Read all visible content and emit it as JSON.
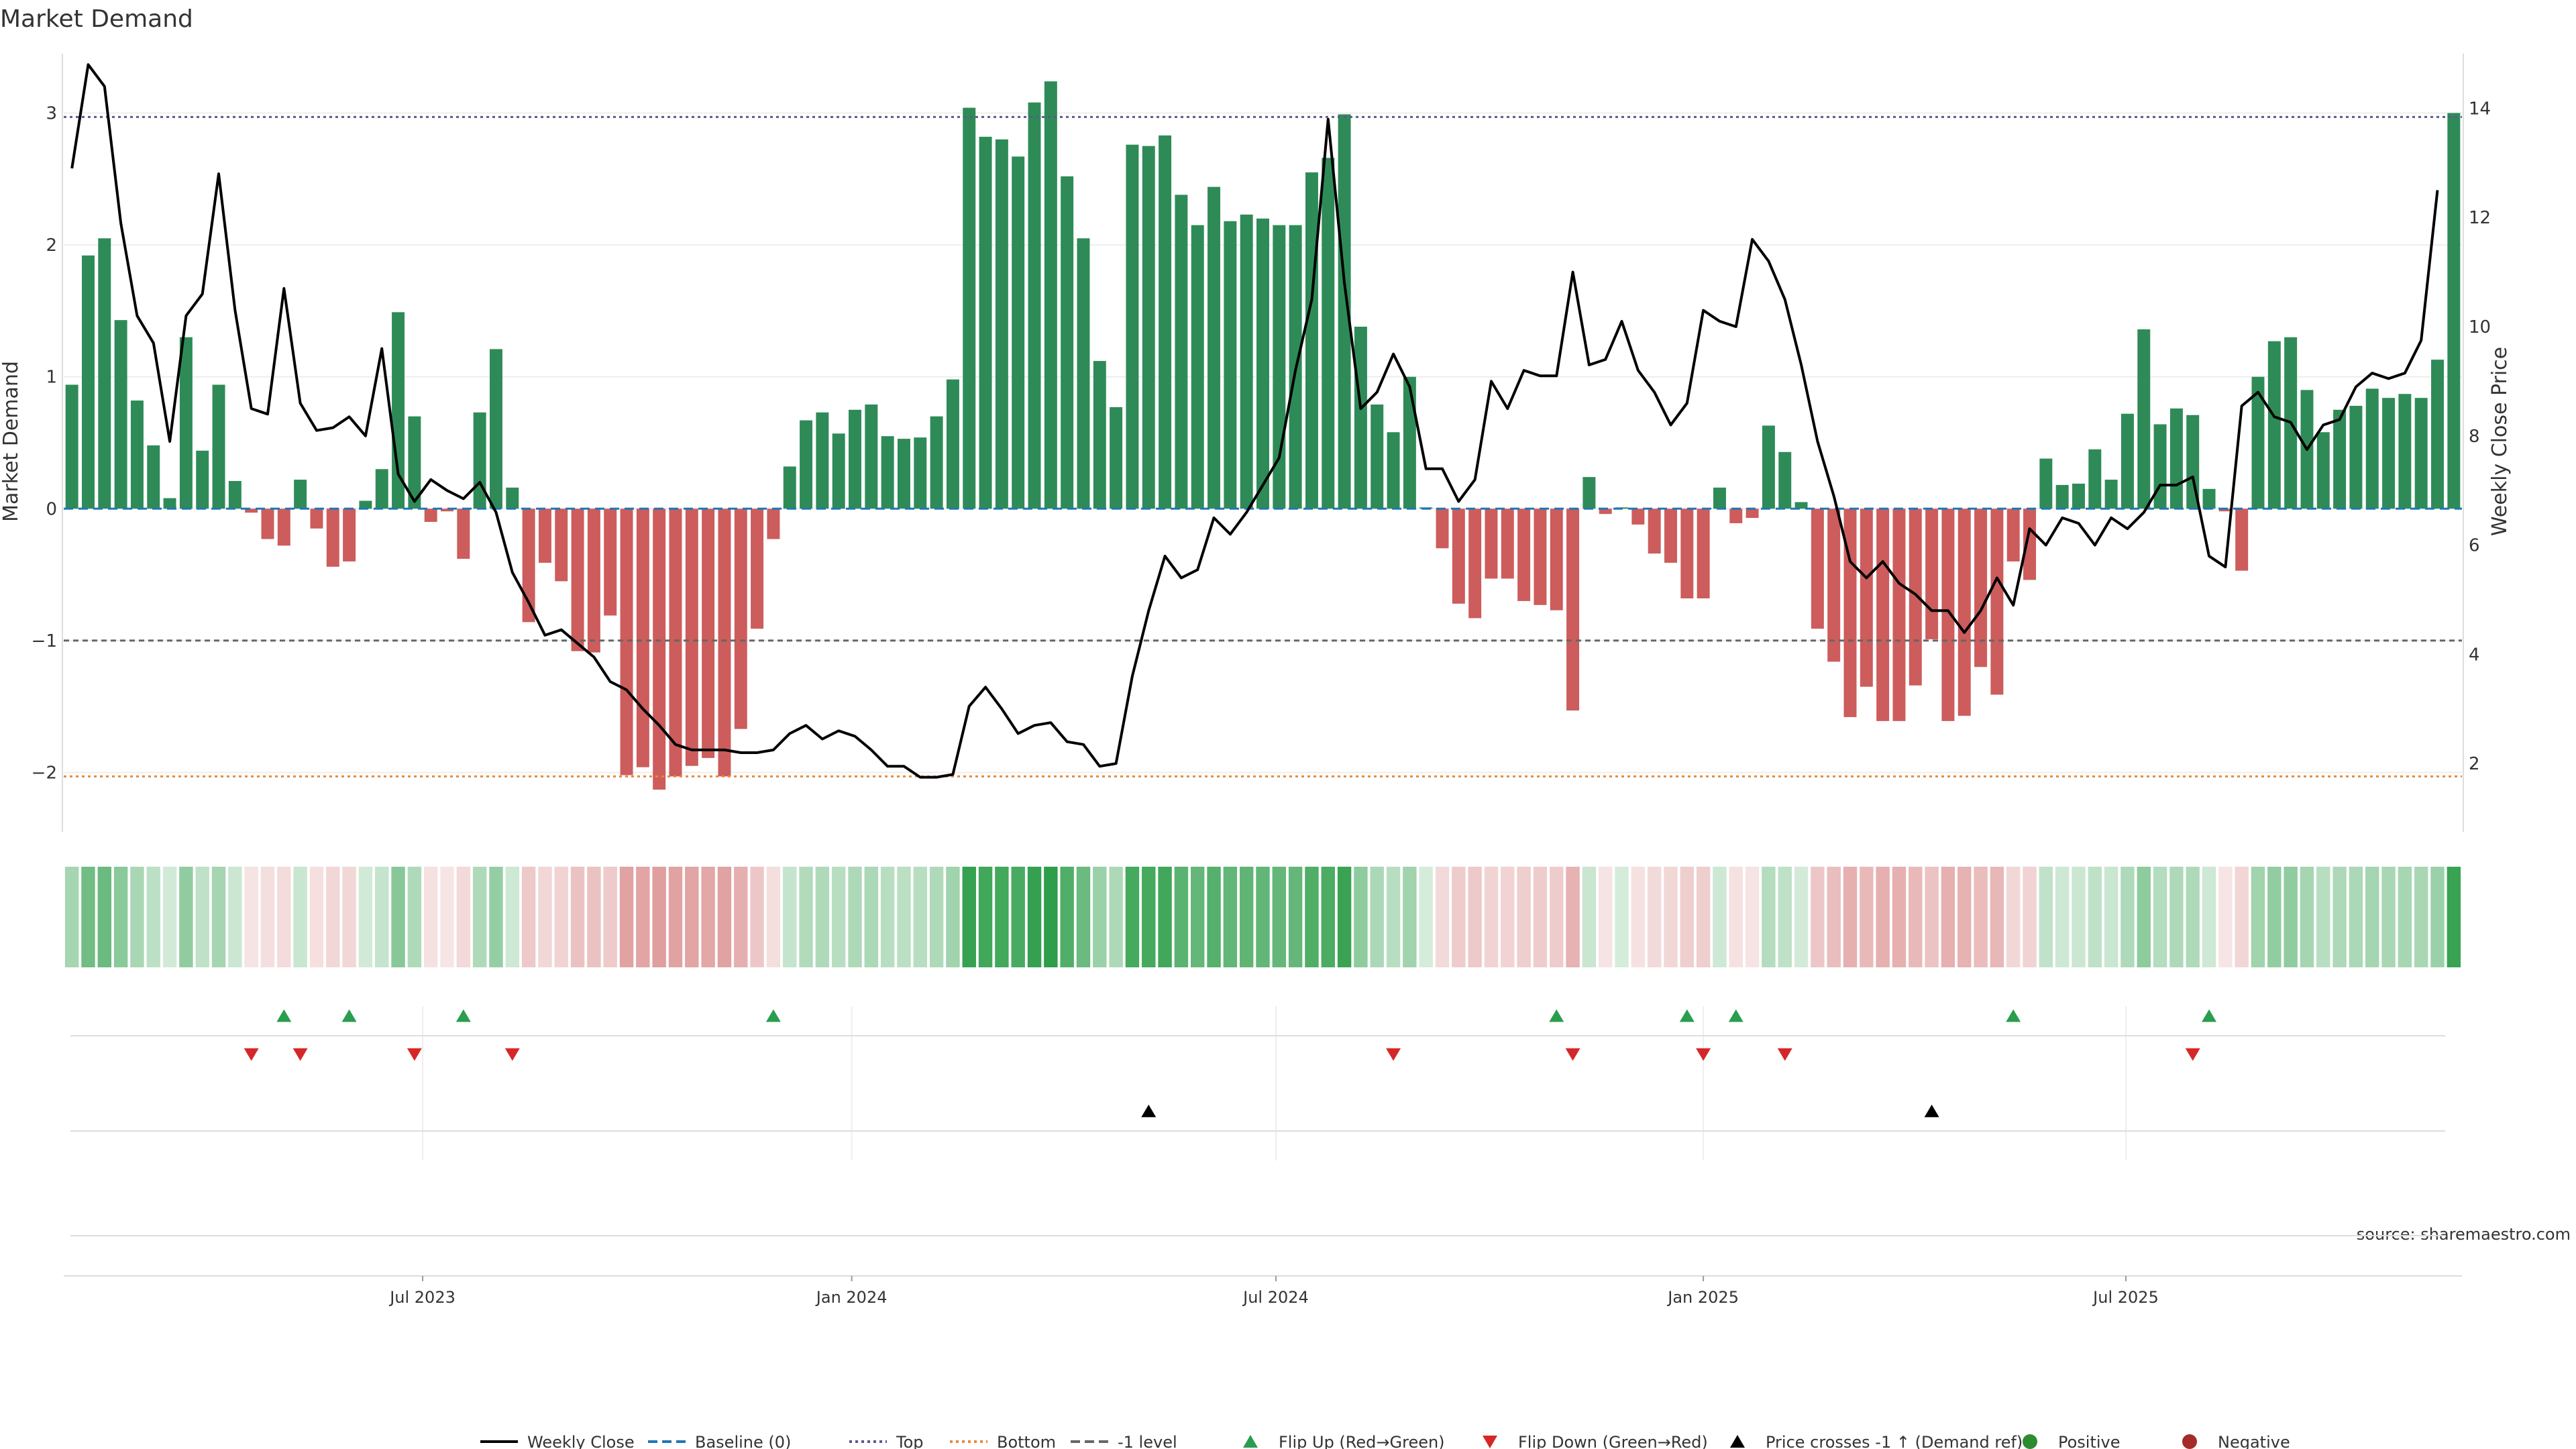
{
  "chart_data": {
    "type": "bar",
    "title": "Market Demand",
    "ylabel_left": "Market Demand",
    "ylabel_right": "Weekly Close Price",
    "source": "source: sharemaestro.com",
    "ylim_left": [
      -2.45,
      3.45
    ],
    "ylim_right": [
      0.75,
      15.0
    ],
    "yticks_left": [
      {
        "v": 3,
        "label": "3"
      },
      {
        "v": 2,
        "label": "2"
      },
      {
        "v": 1,
        "label": "1"
      },
      {
        "v": 0,
        "label": "0"
      },
      {
        "v": -1,
        "label": "−1"
      },
      {
        "v": -2,
        "label": "−2"
      }
    ],
    "yticks_right": [
      {
        "v": 14,
        "label": "14"
      },
      {
        "v": 12,
        "label": "12"
      },
      {
        "v": 10,
        "label": "10"
      },
      {
        "v": 8,
        "label": "8"
      },
      {
        "v": 6,
        "label": "6"
      },
      {
        "v": 4,
        "label": "4"
      },
      {
        "v": 2,
        "label": "2"
      }
    ],
    "xticks": [
      {
        "i": 21.5,
        "label": "Jul 2023"
      },
      {
        "i": 47.8,
        "label": "Jan 2024"
      },
      {
        "i": 73.8,
        "label": "Jul 2024"
      },
      {
        "i": 100.0,
        "label": "Jan 2025"
      },
      {
        "i": 125.9,
        "label": "Jul 2025"
      }
    ],
    "levels": {
      "top": 2.97,
      "bottom": -2.03,
      "minus_one": -1.0,
      "baseline": 0
    },
    "demand": [
      0.94,
      1.92,
      2.05,
      1.43,
      0.82,
      0.48,
      0.08,
      1.3,
      0.44,
      0.94,
      0.21,
      -0.03,
      -0.23,
      -0.28,
      0.22,
      -0.15,
      -0.44,
      -0.4,
      0.06,
      0.3,
      1.49,
      0.7,
      -0.1,
      -0.02,
      -0.38,
      0.73,
      1.21,
      0.16,
      -0.86,
      -0.41,
      -0.55,
      -1.08,
      -1.09,
      -0.81,
      -2.02,
      -1.96,
      -2.13,
      -2.03,
      -1.95,
      -1.89,
      -2.03,
      -1.67,
      -0.91,
      -0.23,
      0.32,
      0.67,
      0.73,
      0.57,
      0.75,
      0.79,
      0.55,
      0.53,
      0.54,
      0.7,
      0.98,
      3.04,
      2.82,
      2.8,
      2.67,
      3.08,
      3.24,
      2.52,
      2.05,
      1.12,
      0.77,
      2.76,
      2.75,
      2.83,
      2.38,
      2.15,
      2.44,
      2.18,
      2.23,
      2.2,
      2.15,
      2.15,
      2.55,
      2.66,
      2.99,
      1.38,
      0.79,
      0.58,
      1.0,
      0.01,
      -0.3,
      -0.72,
      -0.83,
      -0.53,
      -0.53,
      -0.7,
      -0.73,
      -0.77,
      -1.53,
      0.24,
      -0.04,
      0.01,
      -0.12,
      -0.34,
      -0.41,
      -0.68,
      -0.68,
      0.16,
      -0.11,
      -0.07,
      0.63,
      0.43,
      0.05,
      -0.91,
      -1.16,
      -1.58,
      -1.35,
      -1.61,
      -1.61,
      -1.34,
      -0.99,
      -1.61,
      -1.57,
      -1.2,
      -1.41,
      -0.4,
      -0.54,
      0.38,
      0.18,
      0.19,
      0.45,
      0.22,
      0.72,
      1.36,
      0.64,
      0.76,
      0.71,
      0.15,
      -0.02,
      -0.47,
      1.0,
      1.27,
      1.3,
      0.9,
      0.58,
      0.75,
      0.78,
      0.91,
      0.84,
      0.87,
      0.84,
      1.13,
      3.0
    ],
    "close": [
      12.9,
      14.8,
      14.4,
      11.9,
      10.2,
      9.7,
      7.9,
      10.2,
      10.6,
      12.8,
      10.3,
      8.5,
      8.4,
      10.7,
      8.6,
      8.1,
      8.15,
      8.35,
      8.0,
      9.6,
      7.3,
      6.8,
      7.2,
      7.0,
      6.85,
      7.15,
      6.6,
      5.5,
      4.95,
      4.35,
      4.45,
      4.2,
      3.95,
      3.5,
      3.35,
      3.0,
      2.7,
      2.35,
      2.25,
      2.25,
      2.25,
      2.2,
      2.2,
      2.25,
      2.55,
      2.7,
      2.45,
      2.6,
      2.5,
      2.25,
      1.95,
      1.95,
      1.75,
      1.75,
      1.8,
      3.05,
      3.4,
      3.0,
      2.55,
      2.7,
      2.75,
      2.4,
      2.35,
      1.95,
      2.0,
      3.6,
      4.8,
      5.8,
      5.4,
      5.55,
      6.5,
      6.2,
      6.6,
      7.1,
      7.6,
      9.2,
      10.5,
      13.8,
      10.8,
      8.5,
      8.8,
      9.5,
      8.9,
      7.4,
      7.4,
      6.8,
      7.2,
      9.0,
      8.5,
      9.2,
      9.1,
      9.1,
      11.0,
      9.3,
      9.4,
      10.1,
      9.2,
      8.8,
      8.2,
      8.6,
      10.3,
      10.1,
      10.0,
      11.6,
      11.2,
      10.5,
      9.3,
      7.9,
      6.9,
      5.7,
      5.4,
      5.7,
      5.3,
      5.1,
      4.8,
      4.8,
      4.4,
      4.8,
      5.4,
      4.9,
      6.3,
      6.0,
      6.5,
      6.4,
      6.0,
      6.5,
      6.3,
      6.6,
      7.1,
      7.1,
      7.25,
      5.8,
      5.6,
      8.55,
      8.8,
      8.35,
      8.25,
      7.75,
      8.2,
      8.3,
      8.9,
      9.15,
      9.05,
      9.15,
      9.75,
      12.5
    ],
    "flip_up": [
      13,
      17,
      24,
      43,
      91,
      99,
      102,
      119,
      131
    ],
    "flip_down": [
      11,
      14,
      21,
      27,
      81,
      92,
      100,
      105,
      130
    ],
    "price_crosses": [
      66,
      114
    ],
    "legend": [
      {
        "label": "Weekly Close",
        "marker": "line",
        "color": "#000000"
      },
      {
        "label": "Baseline (0)",
        "marker": "dashed",
        "color": "#1f77b4"
      },
      {
        "label": "Top",
        "marker": "dotted",
        "color": "#5a5a8c"
      },
      {
        "label": "Bottom",
        "marker": "dotted",
        "color": "#e8893a"
      },
      {
        "label": "-1 level",
        "marker": "dashed",
        "color": "#666666"
      },
      {
        "label": "Flip Up (Red→Green)",
        "marker": "triangle-up",
        "color": "#2a9d4e"
      },
      {
        "label": "Flip Down (Green→Red)",
        "marker": "triangle-down",
        "color": "#d62728"
      },
      {
        "label": "Price crosses -1 ↑ (Demand ref)",
        "marker": "triangle-up",
        "color": "#000000"
      },
      {
        "label": "Positive",
        "marker": "circle",
        "color": "#2e8b2e"
      },
      {
        "label": "Negative",
        "marker": "circle",
        "color": "#a52a2a"
      }
    ],
    "colors": {
      "positive_bar": "#2e8b57",
      "negative_bar": "#cd5c5c",
      "heat_pos": "#2e9e4a",
      "heat_neg": "#c75050"
    }
  }
}
